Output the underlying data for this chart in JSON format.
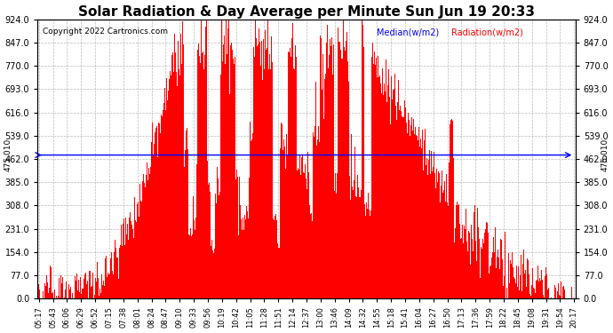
{
  "title": "Solar Radiation & Day Average per Minute Sun Jun 19 20:33",
  "copyright": "Copyright 2022 Cartronics.com",
  "legend_median": "Median(w/m2)",
  "legend_radiation": "Radiation(w/m2)",
  "yticks": [
    0.0,
    77.0,
    154.0,
    231.0,
    308.0,
    385.0,
    462.0,
    539.0,
    616.0,
    693.0,
    770.0,
    847.0,
    924.0
  ],
  "ymin": 0.0,
  "ymax": 924.0,
  "median_value": 475.01,
  "median_label": "475.010",
  "bar_color": "#FF0000",
  "median_color": "#0000FF",
  "grid_color": "#AAAAAA",
  "background_color": "#FFFFFF",
  "title_fontsize": 11,
  "x_tick_labels": [
    "05:17",
    "05:43",
    "06:06",
    "06:29",
    "06:52",
    "07:15",
    "07:38",
    "08:01",
    "08:24",
    "08:47",
    "09:10",
    "09:33",
    "09:56",
    "10:19",
    "10:42",
    "11:05",
    "11:28",
    "11:51",
    "12:14",
    "12:37",
    "13:00",
    "13:46",
    "14:09",
    "14:32",
    "14:55",
    "15:18",
    "15:41",
    "16:04",
    "16:27",
    "16:50",
    "17:13",
    "17:36",
    "17:59",
    "18:22",
    "18:45",
    "19:08",
    "19:31",
    "19:54",
    "20:17"
  ],
  "num_points": 900
}
